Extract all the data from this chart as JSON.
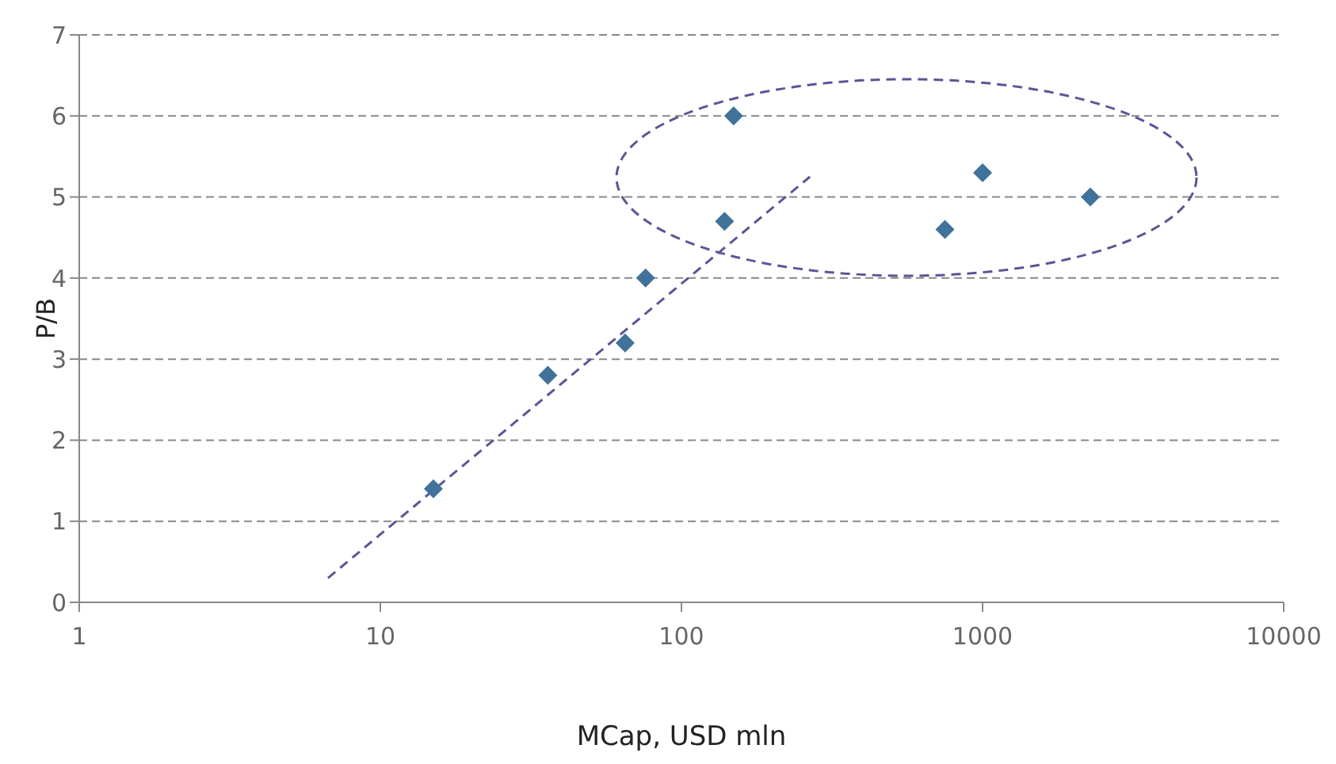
{
  "chart_data": {
    "type": "scatter",
    "xlabel": "MCap, USD mln",
    "ylabel": "P/B",
    "log": "x",
    "grid": "y",
    "marker": "diamond",
    "xlim": [
      1,
      10000
    ],
    "xticks": [
      1,
      10,
      100,
      1000,
      10000
    ],
    "ylim": [
      0,
      7
    ],
    "yticks": [
      0,
      1,
      2,
      3,
      4,
      5,
      6,
      7
    ],
    "series": [
      {
        "color": "#41729a",
        "x": [
          15,
          36,
          65,
          76,
          139,
          149,
          750,
          1000,
          2280
        ],
        "values": [
          1.4,
          2.8,
          3.2,
          4.0,
          4.7,
          6.0,
          4.6,
          5.3,
          5.0
        ]
      },
      {
        "type": "line",
        "color": "#5b5596",
        "line_style": "dashed",
        "marker": "none",
        "x": [
          6.7,
          267
        ],
        "values": [
          0.3,
          5.25
        ]
      }
    ]
  }
}
